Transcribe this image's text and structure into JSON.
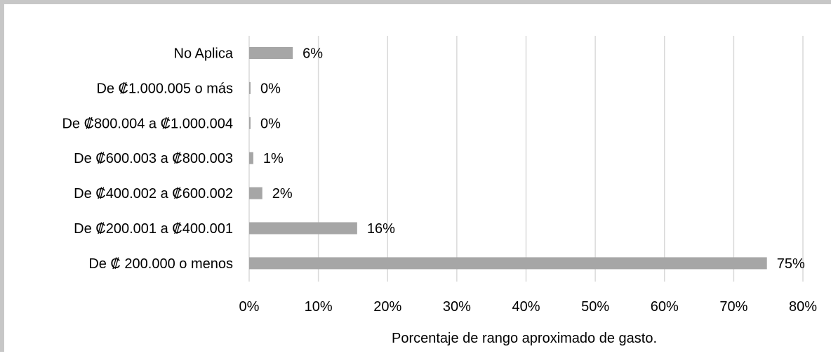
{
  "chart_data": {
    "type": "bar",
    "orientation": "horizontal",
    "categories": [
      "No Aplica",
      "De ₡1.000.005 o más",
      "De ₡800.004 a ₡1.000.004",
      "De ₡600.003 a ₡800.003",
      "De ₡400.002 a ₡600.002",
      "De ₡200.001 a ₡400.001",
      "De ₡ 200.000 o menos"
    ],
    "values": [
      6.3,
      0.2,
      0.2,
      0.6,
      1.9,
      15.6,
      74.8
    ],
    "data_labels": [
      "6%",
      "0%",
      "0%",
      "1%",
      "2%",
      "16%",
      "75%"
    ],
    "xlim": [
      0,
      80
    ],
    "x_ticks": [
      0,
      10,
      20,
      30,
      40,
      50,
      60,
      70,
      80
    ],
    "x_tick_labels": [
      "0%",
      "10%",
      "20%",
      "30%",
      "40%",
      "50%",
      "60%",
      "70%",
      "80%"
    ],
    "xlabel": "Porcentaje de rango aproximado de gasto.",
    "ylabel": "",
    "title": "",
    "grid": "vertical",
    "legend": "none",
    "bar_color": "#a6a6a6",
    "gridline_color": "#d9d9d9",
    "frame_color": "#c7c7c7"
  }
}
